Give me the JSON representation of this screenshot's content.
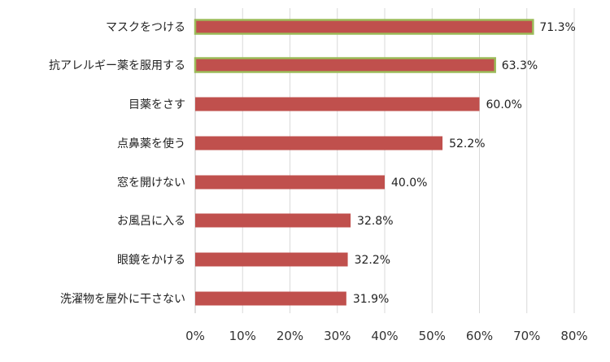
{
  "chart_data": {
    "type": "bar",
    "orientation": "horizontal",
    "categories": [
      "マスクをつける",
      "抗アレルギー薬を服用する",
      "目薬をさす",
      "点鼻薬を使う",
      "窓を開けない",
      "お風呂に入る",
      "眼鏡をかける",
      "洗濯物を屋外に干さない"
    ],
    "values": [
      71.3,
      63.3,
      60.0,
      52.2,
      40.0,
      32.8,
      32.2,
      31.9
    ],
    "value_labels": [
      "71.3%",
      "63.3%",
      "60.0%",
      "52.2%",
      "40.0%",
      "32.8%",
      "32.2%",
      "31.9%"
    ],
    "xlim": [
      0,
      80
    ],
    "xticks": [
      0,
      10,
      20,
      30,
      40,
      50,
      60,
      70,
      80
    ],
    "xtick_labels": [
      "0%",
      "10%",
      "20%",
      "30%",
      "40%",
      "50%",
      "60%",
      "70%",
      "80%"
    ],
    "grid": true,
    "colors": {
      "bar": "#c0504d",
      "highlight_border": "#9bbb59",
      "grid": "#d9d9d9"
    },
    "highlighted": [
      0,
      1
    ]
  }
}
